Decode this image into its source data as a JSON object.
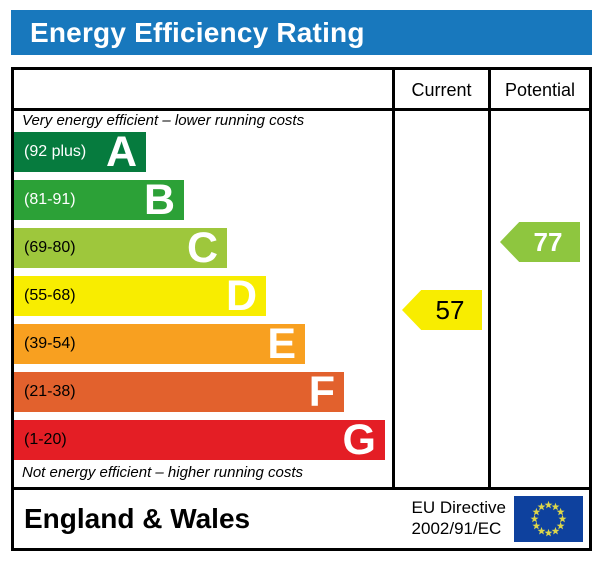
{
  "title": "Energy Efficiency Rating",
  "title_bar_color": "#1878bd",
  "columns": {
    "current": "Current",
    "potential": "Potential"
  },
  "top_note": "Very energy efficient – lower running costs",
  "bottom_note": "Not energy efficient – higher running costs",
  "bands": [
    {
      "letter": "A",
      "range": "(92 plus)",
      "color": "#067b3e",
      "range_color": "#ffffff"
    },
    {
      "letter": "B",
      "range": "(81-91)",
      "color": "#2ca137",
      "range_color": "#ffffff"
    },
    {
      "letter": "C",
      "range": "(69-80)",
      "color": "#9ec73c",
      "range_color": "#000000"
    },
    {
      "letter": "D",
      "range": "(55-68)",
      "color": "#f8ed00",
      "range_color": "#000000"
    },
    {
      "letter": "E",
      "range": "(39-54)",
      "color": "#f8a020",
      "range_color": "#000000"
    },
    {
      "letter": "F",
      "range": "(21-38)",
      "color": "#e2612d",
      "range_color": "#000000"
    },
    {
      "letter": "G",
      "range": "(1-20)",
      "color": "#e41e25",
      "range_color": "#000000"
    }
  ],
  "current": {
    "value": "57",
    "band": "D",
    "color": "#f8ed00",
    "text_color": "#000000"
  },
  "potential": {
    "value": "77",
    "band": "C",
    "color": "#8ec63f",
    "text_color": "#ffffff"
  },
  "footer": {
    "region": "England & Wales",
    "directive_line1": "EU Directive",
    "directive_line2": "2002/91/EC",
    "flag_icon": "eu-flag-icon",
    "flag_blue": "#0e419e",
    "flag_star_color": "#ddd64a"
  },
  "chart_data": {
    "type": "bar",
    "title": "Energy Efficiency Rating",
    "categories": [
      "A",
      "B",
      "C",
      "D",
      "E",
      "F",
      "G"
    ],
    "band_ranges": [
      "92 plus",
      "81-91",
      "69-80",
      "55-68",
      "39-54",
      "21-38",
      "1-20"
    ],
    "band_colors": [
      "#067b3e",
      "#2ca137",
      "#9ec73c",
      "#f8ed00",
      "#f8a020",
      "#e2612d",
      "#e41e25"
    ],
    "scale": [
      1,
      100
    ],
    "series": [
      {
        "name": "Current",
        "values": [
          57
        ],
        "band": "D",
        "marker_color": "#f8ed00"
      },
      {
        "name": "Potential",
        "values": [
          77
        ],
        "band": "C",
        "marker_color": "#8ec63f"
      }
    ],
    "annotations": [
      "Very energy efficient – lower running costs",
      "Not energy efficient – higher running costs"
    ],
    "footer": "England & Wales | EU Directive 2002/91/EC"
  }
}
